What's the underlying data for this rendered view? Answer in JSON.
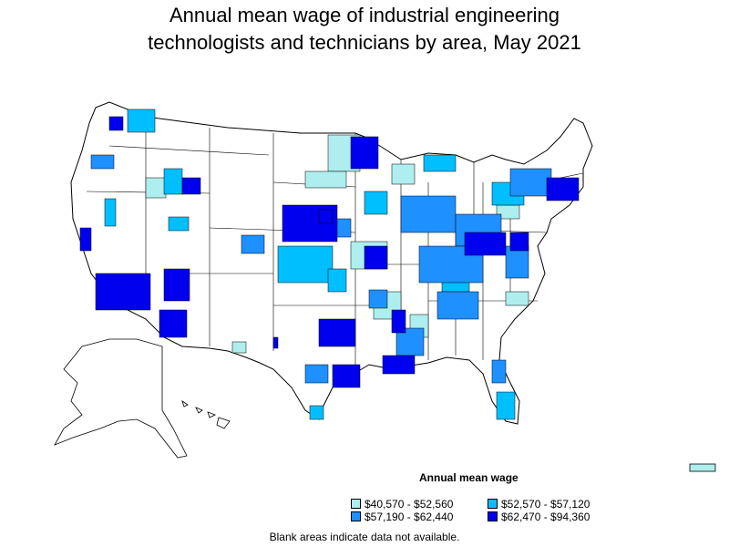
{
  "title_line1": "Annual mean wage of industrial engineering",
  "title_line2": "technologists and technicians by area, May 2021",
  "legend": {
    "title": "Annual mean wage",
    "items": [
      {
        "label": "$40,570 - $52,560",
        "color": "#aeeeee"
      },
      {
        "label": "$52,570 - $57,120",
        "color": "#00bfff"
      },
      {
        "label": "$57,190 - $62,440",
        "color": "#1e90ff"
      },
      {
        "label": "$62,470 - $94,360",
        "color": "#0000ee"
      }
    ]
  },
  "note": "Blank areas indicate data not available."
}
